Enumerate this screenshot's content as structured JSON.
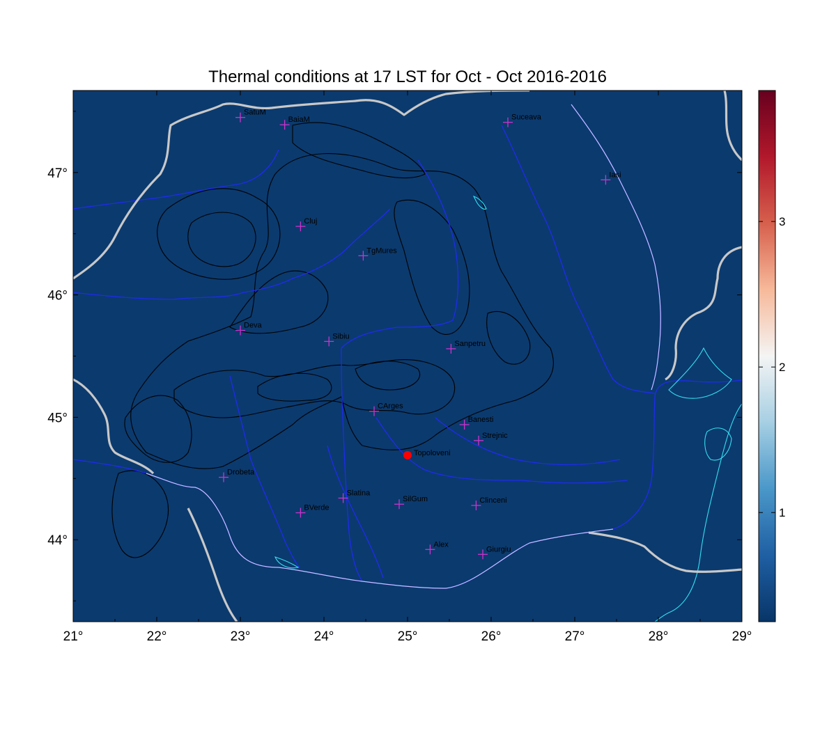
{
  "title": "Thermal conditions at 17 LST for Oct - Oct  2016-2016",
  "map": {
    "lon_range": [
      21,
      29
    ],
    "lat_range": [
      43.33,
      47.67
    ],
    "lon_ticks": [
      {
        "value": 21,
        "label": "21°"
      },
      {
        "value": 22,
        "label": "22°"
      },
      {
        "value": 23,
        "label": "23°"
      },
      {
        "value": 24,
        "label": "24°"
      },
      {
        "value": 25,
        "label": "25°"
      },
      {
        "value": 26,
        "label": "26°"
      },
      {
        "value": 27,
        "label": "27°"
      },
      {
        "value": 28,
        "label": "28°"
      },
      {
        "value": 29,
        "label": "29°"
      }
    ],
    "lat_ticks": [
      {
        "value": 44,
        "label": "44°"
      },
      {
        "value": 45,
        "label": "45°"
      },
      {
        "value": 46,
        "label": "46°"
      },
      {
        "value": 47,
        "label": "47°"
      }
    ],
    "field_color": "#0b3a6e",
    "colors": {
      "border": "#c8c8c8",
      "river": "#1f2bf0",
      "lake": "#35e0f0",
      "contour": "#000000",
      "station_marker": "#cc33cc",
      "highlight": "#ff0000"
    },
    "stations": [
      {
        "name": "SatuM",
        "lon": 23.0,
        "lat": 47.45
      },
      {
        "name": "BaiaM",
        "lon": 23.53,
        "lat": 47.39
      },
      {
        "name": "Suceava",
        "lon": 26.2,
        "lat": 47.41
      },
      {
        "name": "Iasi",
        "lon": 27.37,
        "lat": 46.94
      },
      {
        "name": "Cluj",
        "lon": 23.72,
        "lat": 46.56
      },
      {
        "name": "TgMures",
        "lon": 24.47,
        "lat": 46.32
      },
      {
        "name": "Deva",
        "lon": 23.0,
        "lat": 45.71
      },
      {
        "name": "Sibiu",
        "lon": 24.06,
        "lat": 45.62
      },
      {
        "name": "Sanpetru",
        "lon": 25.52,
        "lat": 45.56
      },
      {
        "name": "CArges",
        "lon": 24.6,
        "lat": 45.05
      },
      {
        "name": "Banesti",
        "lon": 25.68,
        "lat": 44.94
      },
      {
        "name": "Strejnic",
        "lon": 25.85,
        "lat": 44.81
      },
      {
        "name": "Drobeta",
        "lon": 22.8,
        "lat": 44.51
      },
      {
        "name": "Slatina",
        "lon": 24.23,
        "lat": 44.34
      },
      {
        "name": "SilGum",
        "lon": 24.9,
        "lat": 44.29
      },
      {
        "name": "Clinceni",
        "lon": 25.82,
        "lat": 44.28
      },
      {
        "name": "BVerde",
        "lon": 23.72,
        "lat": 44.22
      },
      {
        "name": "Alex",
        "lon": 25.27,
        "lat": 43.92
      },
      {
        "name": "Giurgiu",
        "lon": 25.9,
        "lat": 43.88
      }
    ],
    "highlight_station": {
      "name": "Topoloveni",
      "lon": 25.0,
      "lat": 44.69
    }
  },
  "colorbar": {
    "min": 0.25,
    "max": 3.9,
    "ticks": [
      {
        "value": 1,
        "label": "1"
      },
      {
        "value": 2,
        "label": "2"
      },
      {
        "value": 3,
        "label": "3"
      }
    ],
    "colormap": [
      "#083568",
      "#1f5fa3",
      "#4a97c9",
      "#a6cfe3",
      "#f4f4f4",
      "#f7b99a",
      "#d6604d",
      "#b2182b",
      "#67001f"
    ]
  }
}
